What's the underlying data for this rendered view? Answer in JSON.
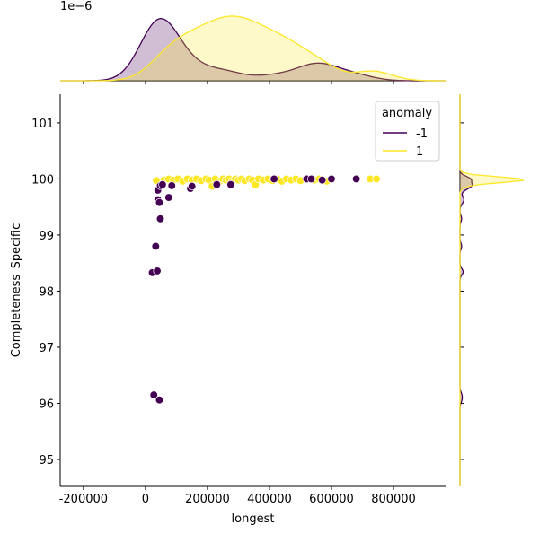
{
  "chart_data": {
    "type": "scatter",
    "subtype": "jointplot with marginal KDE",
    "xlabel": "longest",
    "ylabel": "Completeness_Specific",
    "xlim": [
      -275000,
      968000
    ],
    "ylim": [
      94.52,
      101.51
    ],
    "xticks": [
      -200000,
      0,
      200000,
      400000,
      600000,
      800000
    ],
    "yticks": [
      95,
      96,
      97,
      98,
      99,
      100,
      101
    ],
    "top_marginal_offset_label": "1e−6",
    "legend": {
      "title": "anomaly",
      "placement": "top-right",
      "entries": [
        {
          "label": "-1",
          "color": "#440154"
        },
        {
          "label": "1",
          "color": "#fde725"
        }
      ]
    },
    "grid": false,
    "series": [
      {
        "name": "-1",
        "color": "#440154",
        "points": [
          [
            27000,
            96.15
          ],
          [
            45000,
            96.06
          ],
          [
            22000,
            98.33
          ],
          [
            38000,
            98.36
          ],
          [
            33000,
            98.8
          ],
          [
            48000,
            99.29
          ],
          [
            40000,
            99.63
          ],
          [
            45000,
            99.58
          ],
          [
            75000,
            99.67
          ],
          [
            40000,
            99.8
          ],
          [
            48000,
            99.88
          ],
          [
            55000,
            99.9
          ],
          [
            85000,
            99.88
          ],
          [
            145000,
            99.83
          ],
          [
            150000,
            99.87
          ],
          [
            230000,
            99.9
          ],
          [
            275000,
            99.9
          ],
          [
            415000,
            100
          ],
          [
            520000,
            100
          ],
          [
            535000,
            100
          ],
          [
            570000,
            99.98
          ],
          [
            600000,
            100
          ],
          [
            680000,
            100
          ]
        ]
      },
      {
        "name": "1",
        "color": "#fde725",
        "points": [
          [
            35000,
            99.97
          ],
          [
            60000,
            99.98
          ],
          [
            75000,
            100
          ],
          [
            90000,
            99.98
          ],
          [
            105000,
            100
          ],
          [
            120000,
            99.96
          ],
          [
            135000,
            100
          ],
          [
            150000,
            99.98
          ],
          [
            165000,
            100
          ],
          [
            180000,
            99.97
          ],
          [
            195000,
            100
          ],
          [
            205000,
            99.98
          ],
          [
            215000,
            99.87
          ],
          [
            225000,
            100
          ],
          [
            240000,
            99.96
          ],
          [
            250000,
            100
          ],
          [
            260000,
            99.98
          ],
          [
            270000,
            100
          ],
          [
            280000,
            99.96
          ],
          [
            290000,
            100
          ],
          [
            300000,
            99.98
          ],
          [
            310000,
            100
          ],
          [
            320000,
            99.97
          ],
          [
            335000,
            100
          ],
          [
            345000,
            99.98
          ],
          [
            355000,
            99.9
          ],
          [
            365000,
            100
          ],
          [
            380000,
            99.98
          ],
          [
            395000,
            100
          ],
          [
            410000,
            99.97
          ],
          [
            425000,
            100
          ],
          [
            440000,
            99.96
          ],
          [
            455000,
            100
          ],
          [
            470000,
            99.98
          ],
          [
            485000,
            100
          ],
          [
            500000,
            99.97
          ],
          [
            545000,
            99.98
          ],
          [
            560000,
            100
          ],
          [
            585000,
            99.96
          ],
          [
            725000,
            100
          ],
          [
            745000,
            100
          ]
        ]
      }
    ]
  }
}
